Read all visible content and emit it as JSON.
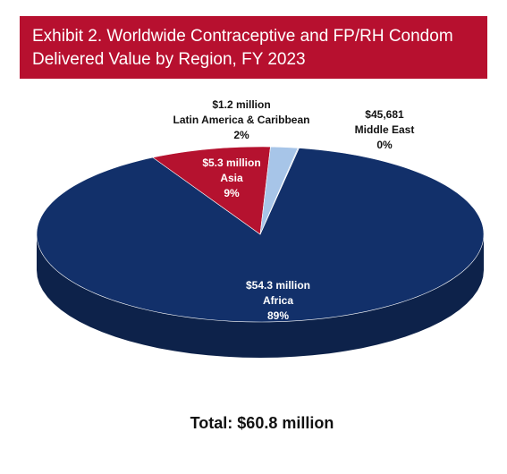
{
  "chart_data": {
    "type": "pie",
    "title": [
      "Exhibit 2. Worldwide Contraceptive and FP/RH Condom",
      "Delivered Value by Region, FY 2023"
    ],
    "categories": [
      "Africa",
      "Asia",
      "Latin America & Caribbean",
      "Middle East"
    ],
    "values": [
      54300000,
      5300000,
      1200000,
      45681
    ],
    "value_labels": [
      "$54.3 million",
      "$5.3 million",
      "$1.2 million",
      "$45,681"
    ],
    "percent_labels": [
      "89%",
      "9%",
      "2%",
      "0%"
    ],
    "colors": [
      "#12306a",
      "#b5122f",
      "#a7c5e8",
      "#c9d6ea"
    ],
    "total_label": "Total: $60.8 million"
  }
}
